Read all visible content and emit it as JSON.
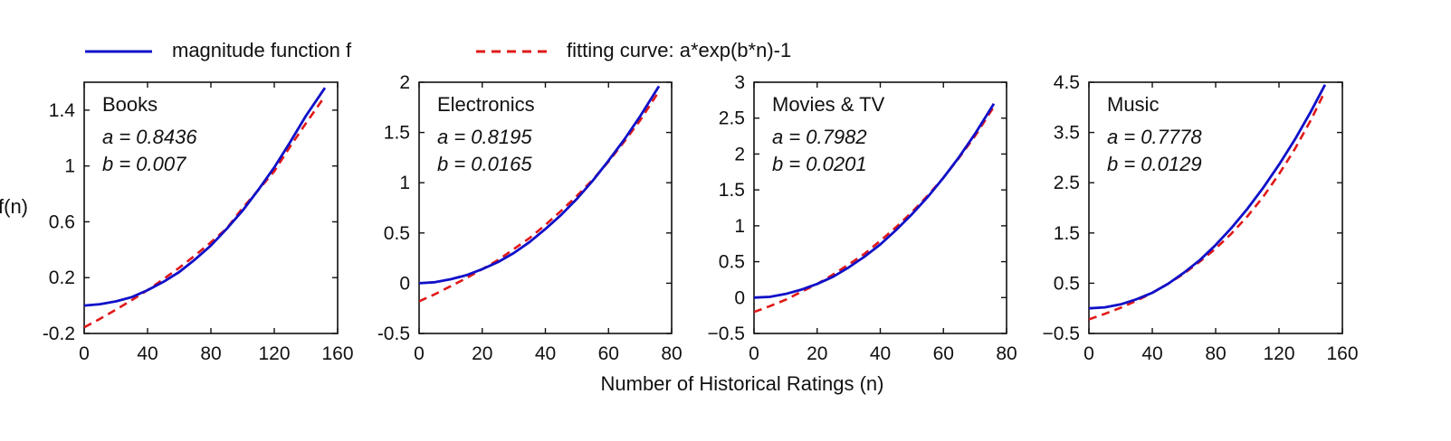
{
  "legend": {
    "series_a_label": "magnitude function f",
    "series_b_label": "fitting curve: a*exp(b*n)-1"
  },
  "shared_xlabel": "Number of Historical Ratings (n)",
  "shared_ylabel": "f(n)",
  "colors": {
    "magnitude": "#1010c8",
    "fitting": "#e01818"
  },
  "chart_data": [
    {
      "type": "line",
      "title": "Books",
      "a_text": "a = 0.8436",
      "b_text": "b = 0.007",
      "a": 0.8436,
      "b": 0.007,
      "xlim": [
        0,
        160
      ],
      "ylim": [
        -0.2,
        1.6
      ],
      "xticks": [
        0,
        40,
        80,
        120,
        160
      ],
      "xtick_labels": [
        "0",
        "40",
        "80",
        "120",
        "160"
      ],
      "yticks": [
        -0.2,
        0.2,
        0.6,
        1,
        1.4
      ],
      "ytick_labels": [
        "-0.2",
        "0.2",
        "0.6",
        "1",
        "1.4"
      ],
      "series": [
        {
          "name": "magnitude function f",
          "style": "solid",
          "x": [
            0,
            10,
            20,
            30,
            40,
            50,
            60,
            70,
            80,
            90,
            100,
            110,
            120,
            130,
            140,
            152
          ],
          "y": [
            0,
            0.01,
            0.03,
            0.06,
            0.11,
            0.17,
            0.24,
            0.33,
            0.43,
            0.55,
            0.68,
            0.83,
            0.99,
            1.17,
            1.36,
            1.56
          ]
        },
        {
          "name": "fitting curve: a*exp(b*n)-1",
          "style": "dashed",
          "x": [
            0,
            10,
            20,
            30,
            40,
            50,
            60,
            70,
            80,
            90,
            100,
            110,
            120,
            130,
            140,
            152
          ],
          "y": [
            -0.156,
            -0.095,
            -0.03,
            0.038,
            0.111,
            0.189,
            0.271,
            0.359,
            0.453,
            0.553,
            0.699,
            0.828,
            0.962,
            1.139,
            1.306,
            1.5
          ]
        }
      ]
    },
    {
      "type": "line",
      "title": "Electronics",
      "a_text": "a = 0.8195",
      "b_text": "b = 0.0165",
      "a": 0.8195,
      "b": 0.0165,
      "xlim": [
        0,
        80
      ],
      "ylim": [
        -0.5,
        2
      ],
      "xticks": [
        0,
        20,
        40,
        60,
        80
      ],
      "xtick_labels": [
        "0",
        "20",
        "40",
        "60",
        "80"
      ],
      "yticks": [
        -0.5,
        0,
        0.5,
        1,
        1.5,
        2
      ],
      "ytick_labels": [
        "-0.5",
        "0",
        "0.5",
        "1",
        "1.5",
        "2"
      ],
      "series": [
        {
          "name": "magnitude function f",
          "style": "solid",
          "x": [
            0,
            5,
            10,
            15,
            20,
            25,
            30,
            35,
            40,
            45,
            50,
            55,
            60,
            65,
            70,
            76
          ],
          "y": [
            0,
            0.01,
            0.04,
            0.08,
            0.14,
            0.21,
            0.3,
            0.41,
            0.54,
            0.68,
            0.84,
            1.02,
            1.22,
            1.43,
            1.66,
            1.96
          ]
        },
        {
          "name": "fitting curve: a*exp(b*n)-1",
          "style": "dashed",
          "x": [
            0,
            5,
            10,
            15,
            20,
            25,
            30,
            35,
            40,
            45,
            50,
            55,
            60,
            65,
            70,
            76
          ],
          "y": [
            -0.18,
            -0.11,
            -0.03,
            0.05,
            0.14,
            0.23,
            0.34,
            0.45,
            0.58,
            0.72,
            0.87,
            1.03,
            1.21,
            1.41,
            1.62,
            1.91
          ]
        }
      ]
    },
    {
      "type": "line",
      "title": "Movies & TV",
      "a_text": "a = 0.7982",
      "b_text": "b = 0.0201",
      "a": 0.7982,
      "b": 0.0201,
      "xlim": [
        0,
        80
      ],
      "ylim": [
        -0.5,
        3
      ],
      "xticks": [
        0,
        20,
        40,
        60,
        80
      ],
      "xtick_labels": [
        "0",
        "20",
        "40",
        "60",
        "80"
      ],
      "yticks": [
        -0.5,
        0,
        0.5,
        1,
        1.5,
        2,
        2.5,
        3
      ],
      "ytick_labels": [
        "−0.5",
        "0",
        "0.5",
        "1",
        "1.5",
        "2",
        "2.5",
        "3"
      ],
      "series": [
        {
          "name": "magnitude function f",
          "style": "solid",
          "x": [
            0,
            5,
            10,
            15,
            20,
            25,
            30,
            35,
            40,
            45,
            50,
            55,
            60,
            65,
            70,
            76
          ],
          "y": [
            0,
            0.01,
            0.05,
            0.11,
            0.19,
            0.29,
            0.42,
            0.57,
            0.74,
            0.94,
            1.16,
            1.4,
            1.67,
            1.96,
            2.28,
            2.7
          ]
        },
        {
          "name": "fitting curve: a*exp(b*n)-1",
          "style": "dashed",
          "x": [
            0,
            5,
            10,
            15,
            20,
            25,
            30,
            35,
            40,
            45,
            50,
            55,
            60,
            65,
            70,
            76
          ],
          "y": [
            -0.2,
            -0.12,
            -0.03,
            0.08,
            0.19,
            0.32,
            0.46,
            0.61,
            0.79,
            0.98,
            1.19,
            1.42,
            1.67,
            1.95,
            2.25,
            2.66
          ]
        }
      ]
    },
    {
      "type": "line",
      "title": "Music",
      "a_text": "a = 0.7778",
      "b_text": "b = 0.0129",
      "a": 0.7778,
      "b": 0.0129,
      "xlim": [
        0,
        160
      ],
      "ylim": [
        -0.5,
        4.5
      ],
      "xticks": [
        0,
        40,
        80,
        120,
        160
      ],
      "xtick_labels": [
        "0",
        "40",
        "80",
        "120",
        "160"
      ],
      "yticks": [
        -0.5,
        0.5,
        1.5,
        2.5,
        3.5,
        4.5
      ],
      "ytick_labels": [
        "−0.5",
        "0.5",
        "1.5",
        "2.5",
        "3.5",
        "4.5"
      ],
      "series": [
        {
          "name": "magnitude function f",
          "style": "solid",
          "x": [
            0,
            10,
            20,
            30,
            40,
            50,
            60,
            70,
            80,
            90,
            100,
            110,
            120,
            130,
            140,
            149
          ],
          "y": [
            0,
            0.02,
            0.08,
            0.18,
            0.31,
            0.49,
            0.71,
            0.96,
            1.26,
            1.6,
            1.98,
            2.4,
            2.86,
            3.36,
            3.91,
            4.45
          ]
        },
        {
          "name": "fitting curve: a*exp(b*n)-1",
          "style": "dashed",
          "x": [
            0,
            10,
            20,
            30,
            40,
            50,
            60,
            70,
            80,
            90,
            100,
            110,
            120,
            130,
            140,
            149
          ],
          "y": [
            -0.22,
            -0.11,
            0.01,
            0.15,
            0.31,
            0.49,
            0.69,
            0.93,
            1.19,
            1.49,
            1.83,
            2.22,
            2.67,
            3.17,
            3.74,
            4.32
          ]
        }
      ]
    }
  ]
}
